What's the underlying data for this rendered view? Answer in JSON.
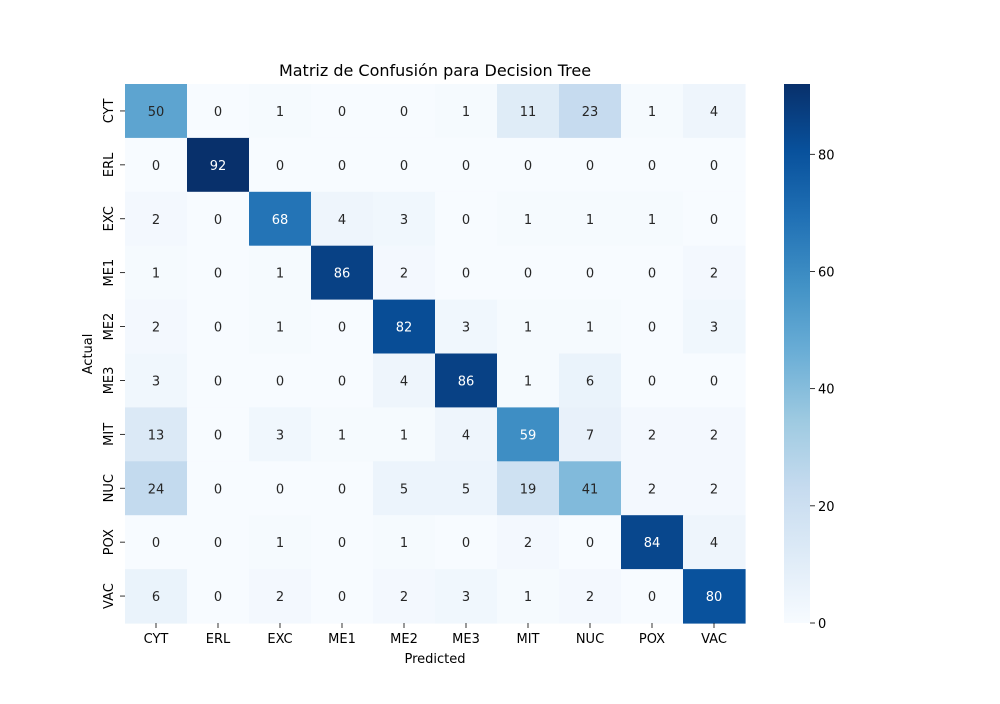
{
  "chart_data": {
    "type": "heatmap",
    "title": "Matriz de Confusión para Decision Tree",
    "xlabel": "Predicted",
    "ylabel": "Actual",
    "x_categories": [
      "CYT",
      "ERL",
      "EXC",
      "ME1",
      "ME2",
      "ME3",
      "MIT",
      "NUC",
      "POX",
      "VAC"
    ],
    "y_categories": [
      "CYT",
      "ERL",
      "EXC",
      "ME1",
      "ME2",
      "ME3",
      "MIT",
      "NUC",
      "POX",
      "VAC"
    ],
    "values": [
      [
        50,
        0,
        1,
        0,
        0,
        1,
        11,
        23,
        1,
        4
      ],
      [
        0,
        92,
        0,
        0,
        0,
        0,
        0,
        0,
        0,
        0
      ],
      [
        2,
        0,
        68,
        4,
        3,
        0,
        1,
        1,
        1,
        0
      ],
      [
        1,
        0,
        1,
        86,
        2,
        0,
        0,
        0,
        0,
        2
      ],
      [
        2,
        0,
        1,
        0,
        82,
        3,
        1,
        1,
        0,
        3
      ],
      [
        3,
        0,
        0,
        0,
        4,
        86,
        1,
        6,
        0,
        0
      ],
      [
        13,
        0,
        3,
        1,
        1,
        4,
        59,
        7,
        2,
        2
      ],
      [
        24,
        0,
        0,
        0,
        5,
        5,
        19,
        41,
        2,
        2
      ],
      [
        0,
        0,
        1,
        0,
        1,
        0,
        2,
        0,
        84,
        4
      ],
      [
        6,
        0,
        2,
        0,
        2,
        3,
        1,
        2,
        0,
        80
      ]
    ],
    "colormap": "Blues",
    "color_range": [
      0,
      92
    ],
    "colorbar_ticks": [
      0,
      20,
      40,
      60,
      80
    ],
    "annotations": true,
    "grid": false,
    "legend": "colorbar-right"
  }
}
